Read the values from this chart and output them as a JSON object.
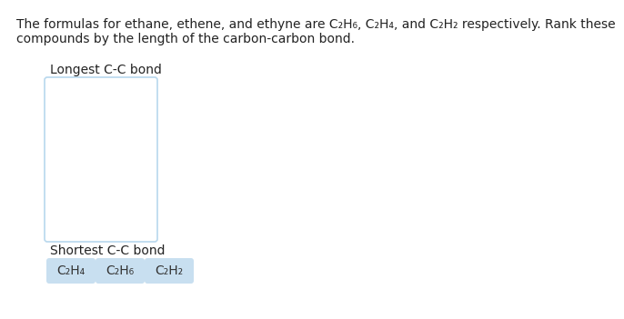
{
  "background_color": "#ffffff",
  "title_text_line1": "The formulas for ethane, ethene, and ethyne are C₂H₆, C₂H₄, and C₂H₂ respectively. Rank these",
  "title_text_line2": "compounds by the length of the carbon-carbon bond.",
  "longest_label": "Longest C-C bond",
  "shortest_label": "Shortest C-C bond",
  "box_color": "#b8d8ed",
  "box_fill": "#ffffff",
  "chip_labels": [
    "C₂H₄",
    "C₂H₆",
    "C₂H₂"
  ],
  "chip_color": "#c8dff0",
  "chip_text_color": "#333333",
  "title_fontsize": 10.0,
  "label_fontsize": 10.0,
  "chip_fontsize": 10.0,
  "text_color": "#222222"
}
